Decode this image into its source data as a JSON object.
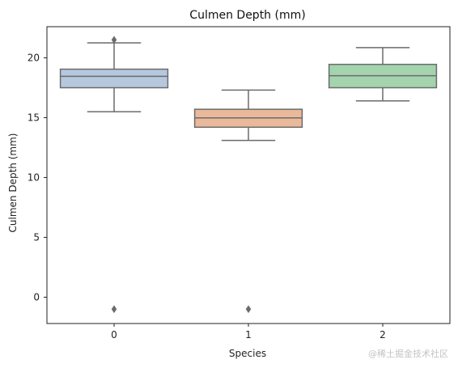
{
  "chart_data": {
    "type": "box",
    "title": "Culmen Depth (mm)",
    "xlabel": "Species",
    "ylabel": "Culmen Depth (mm)",
    "categories": [
      "0",
      "1",
      "2"
    ],
    "ylim": [
      -2.2,
      22.6
    ],
    "yticks": [
      0,
      5,
      10,
      15,
      20
    ],
    "grid": false,
    "boxes": [
      {
        "category": "0",
        "color": "#b6c8de",
        "whisker_low": 15.5,
        "q1": 17.5,
        "median": 18.45,
        "q3": 19.05,
        "whisker_high": 21.25,
        "outliers": [
          21.5,
          -1.0
        ]
      },
      {
        "category": "1",
        "color": "#eab99a",
        "whisker_low": 13.1,
        "q1": 14.2,
        "median": 14.98,
        "q3": 15.7,
        "whisker_high": 17.3,
        "outliers": [
          -1.0
        ]
      },
      {
        "category": "2",
        "color": "#a3d4ad",
        "whisker_low": 16.4,
        "q1": 17.5,
        "median": 18.5,
        "q3": 19.45,
        "whisker_high": 20.85,
        "outliers": []
      }
    ]
  },
  "watermark": "@稀土掘金技术社区"
}
